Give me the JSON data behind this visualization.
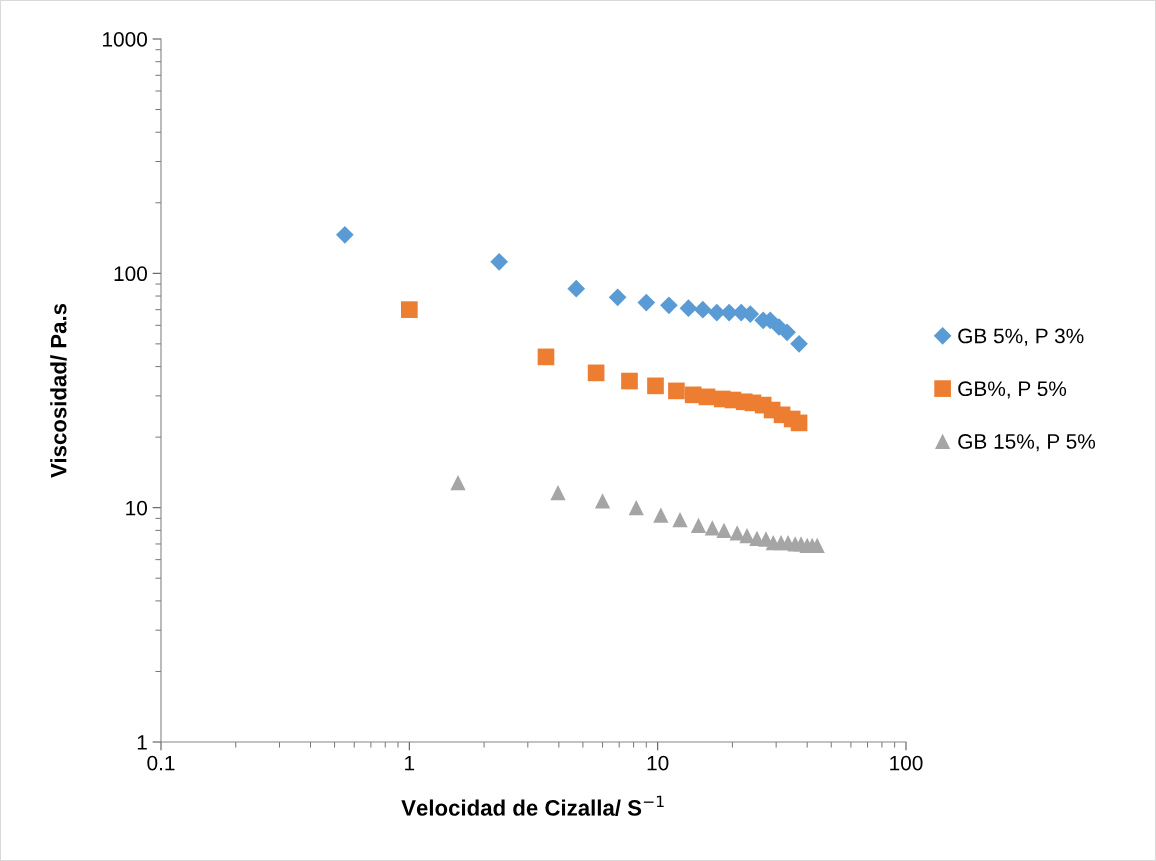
{
  "chart_data": {
    "type": "scatter",
    "xlabel": "Velocidad de Cizalla/ S$^{−1}$",
    "ylabel": "Viscosidad/ Pa.s",
    "log": "xy",
    "grid": false,
    "legend": "right",
    "xlim": [
      0.1,
      100
    ],
    "xticks": [
      {
        "value": 0.1,
        "label": "0.1"
      },
      {
        "value": 1,
        "label": "1"
      },
      {
        "value": 10,
        "label": "10"
      },
      {
        "value": 100,
        "label": "100"
      }
    ],
    "ylim": [
      1,
      1000
    ],
    "yticks": [
      {
        "value": 1,
        "label": "1"
      },
      {
        "value": 10,
        "label": "10"
      },
      {
        "value": 100,
        "label": "100"
      },
      {
        "value": 1000,
        "label": "1000"
      }
    ],
    "series": [
      {
        "name": "GB 5%, P 3%",
        "color": "#5b9bd5",
        "marker": "diamond",
        "x": [
          0.55,
          2.3,
          4.7,
          6.9,
          9.0,
          11.1,
          13.3,
          15.2,
          17.3,
          19.4,
          21.7,
          23.6,
          26.6,
          28.4,
          30.8,
          33.2,
          37.1
        ],
        "values": [
          146,
          112,
          86,
          79,
          75,
          73,
          71,
          70,
          68,
          68,
          68,
          67,
          63,
          63,
          59,
          56,
          50
        ]
      },
      {
        "name": "GB%, P 5%",
        "color": "#ed7d31",
        "marker": "square",
        "x": [
          1.0,
          3.55,
          5.65,
          7.7,
          9.8,
          11.9,
          13.9,
          15.8,
          18.2,
          20.1,
          22.3,
          24.2,
          26.6,
          28.9,
          31.7,
          34.8,
          37.1
        ],
        "values": [
          70,
          44,
          37.6,
          34.7,
          33.1,
          31.5,
          30.3,
          29.7,
          29.1,
          28.8,
          28.3,
          28.0,
          27.4,
          26.1,
          24.9,
          23.9,
          23.0
        ]
      },
      {
        "name": "GB 15%, P 5%",
        "color": "#a5a5a5",
        "marker": "triangle",
        "x": [
          1.57,
          3.97,
          6.0,
          8.2,
          10.3,
          12.3,
          14.6,
          16.6,
          18.5,
          20.9,
          22.9,
          25.1,
          27.3,
          29.2,
          31.4,
          33.5,
          35.8,
          37.8,
          40.0,
          41.9,
          43.9
        ],
        "values": [
          12.8,
          11.6,
          10.7,
          10.0,
          9.3,
          8.9,
          8.4,
          8.2,
          8.0,
          7.8,
          7.6,
          7.4,
          7.35,
          7.1,
          7.1,
          7.1,
          7.0,
          7.0,
          6.9,
          6.9,
          6.9
        ]
      }
    ]
  }
}
